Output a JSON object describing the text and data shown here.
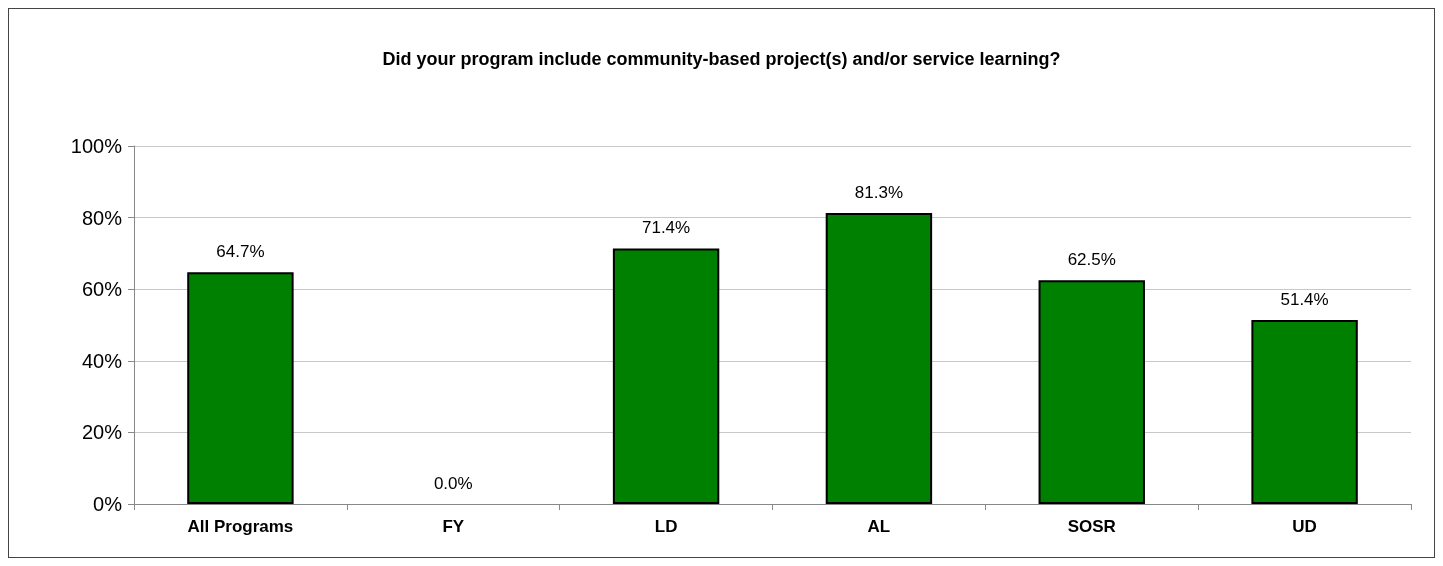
{
  "chart_data": {
    "type": "bar",
    "title": "Did your program include community-based project(s) and/or service learning?",
    "categories": [
      "All Programs",
      "FY",
      "LD",
      "AL",
      "SOSR",
      "UD"
    ],
    "values": [
      64.7,
      0.0,
      71.4,
      81.3,
      62.5,
      51.4
    ],
    "value_labels": [
      "64.7%",
      "0.0%",
      "71.4%",
      "81.3%",
      "62.5%",
      "51.4%"
    ],
    "color": "#008000",
    "ylim": [
      0,
      100
    ],
    "yticks": [
      {
        "value": 0,
        "label": "0%"
      },
      {
        "value": 20,
        "label": "20%"
      },
      {
        "value": 40,
        "label": "40%"
      },
      {
        "value": 60,
        "label": "60%"
      },
      {
        "value": 80,
        "label": "80%"
      },
      {
        "value": 100,
        "label": "100%"
      }
    ],
    "grid": "y"
  }
}
